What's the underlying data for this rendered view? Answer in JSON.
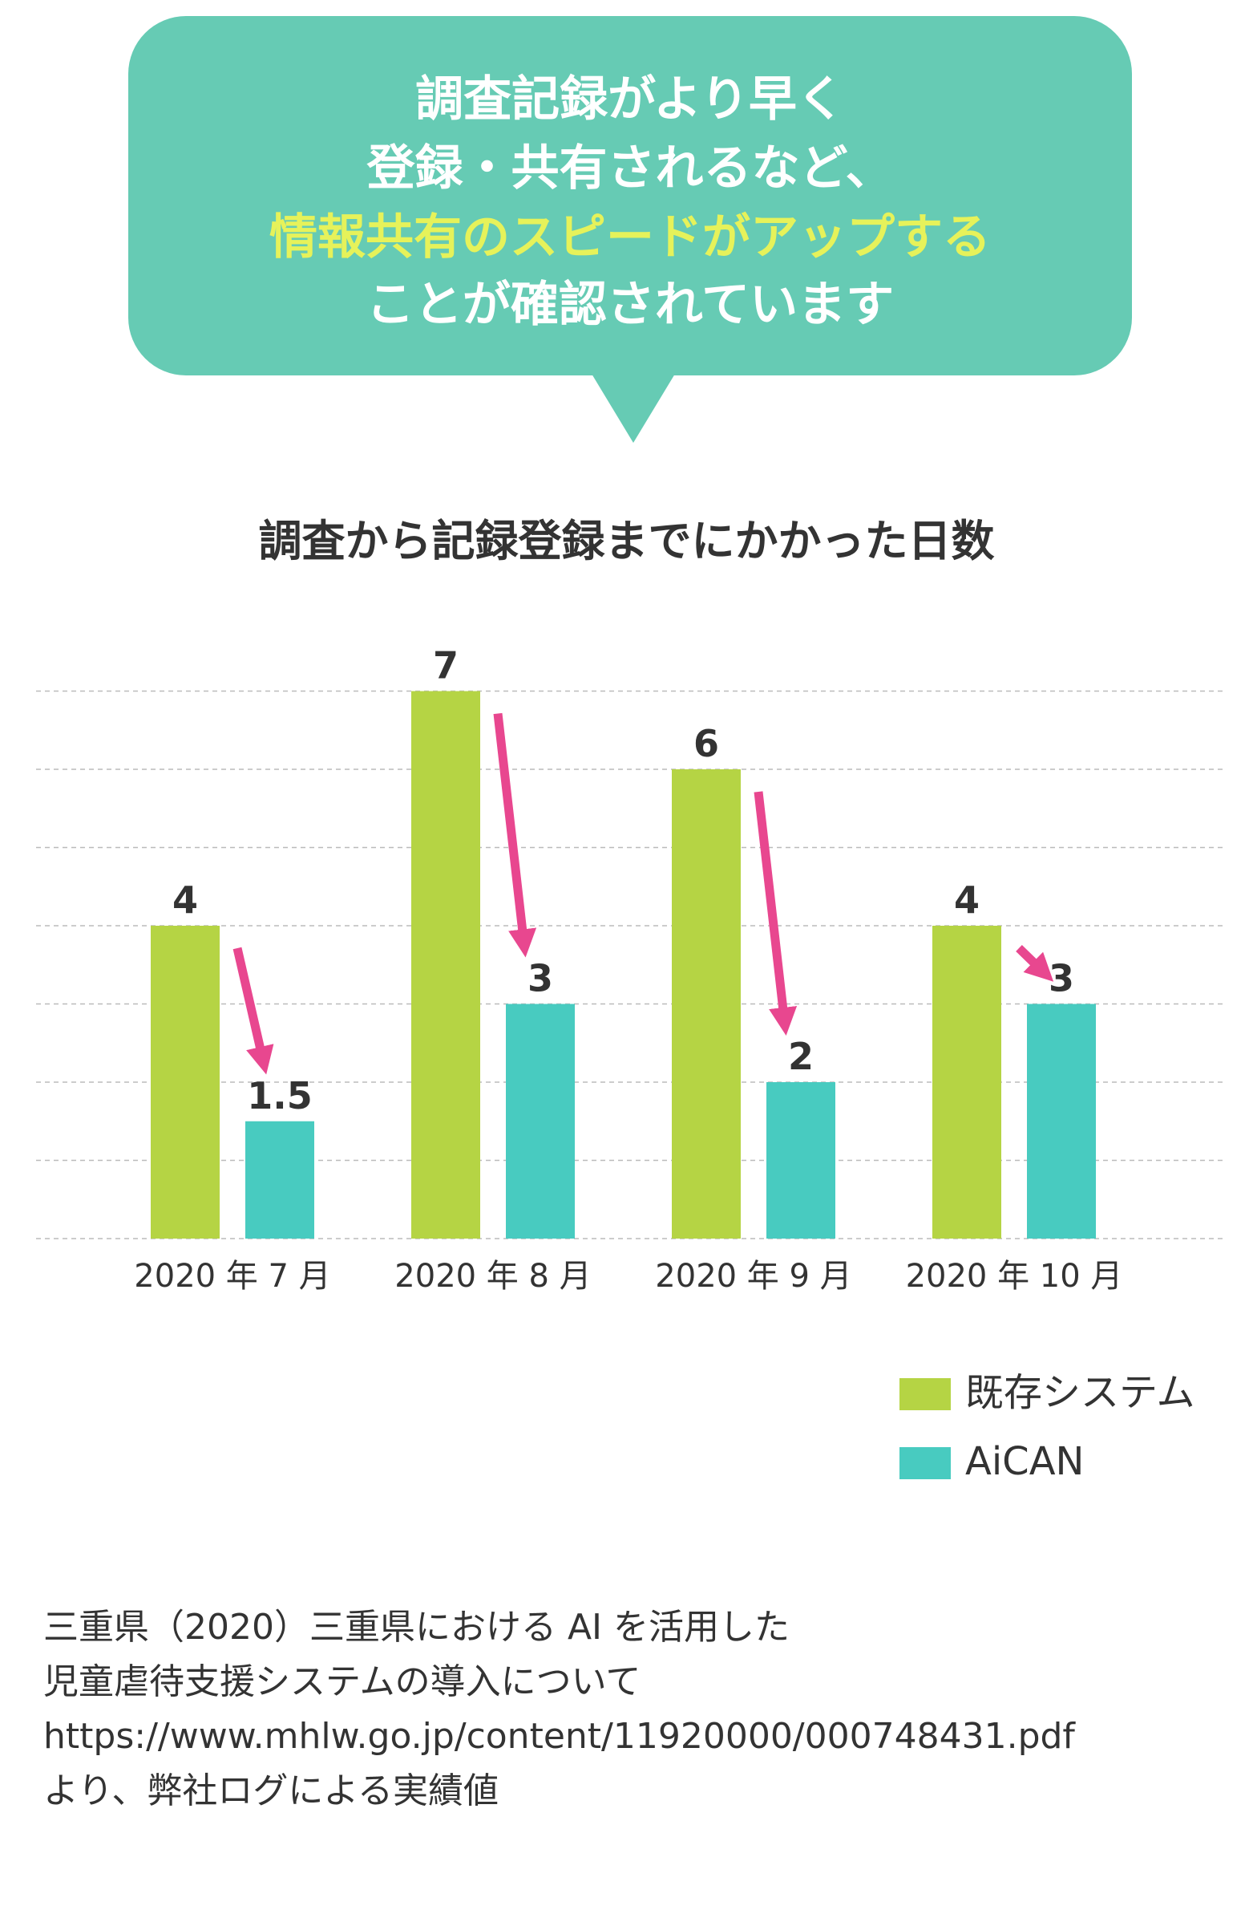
{
  "bubble": {
    "lines": [
      "調査記録がより早く",
      "登録・共有されるなど、",
      "情報共有のスピードがアップする",
      "ことが確認されています"
    ],
    "highlight_line": 2,
    "background_color": "#66cbb4",
    "text_color": "#ffffff",
    "highlight_color": "#e6f25a"
  },
  "chart_data": {
    "type": "bar",
    "title": "調査から記録登録までにかかった日数",
    "categories": [
      "2020 年 7 月",
      "2020 年 8 月",
      "2020 年 9 月",
      "2020 年 10 月"
    ],
    "series": [
      {
        "name": "既存システム",
        "values": [
          4,
          7,
          6,
          4
        ],
        "labels": [
          "4",
          "7",
          "6",
          "4"
        ],
        "color": "#b5d444"
      },
      {
        "name": "AiCAN",
        "values": [
          1.5,
          3,
          2,
          3
        ],
        "labels": [
          "1.5",
          "3",
          "2",
          "3"
        ],
        "color": "#48cbc0"
      }
    ],
    "ylim": [
      0,
      7
    ],
    "grid": true,
    "legend_position": "bottom-right",
    "arrow_color": "#e8478f"
  },
  "source": {
    "lines": [
      "三重県（2020）三重県における AI を活用した",
      "児童虐待支援システムの導入について",
      "https://www.mhlw.go.jp/content/11920000/000748431.pdf",
      "より、弊社ログによる実績値"
    ]
  }
}
